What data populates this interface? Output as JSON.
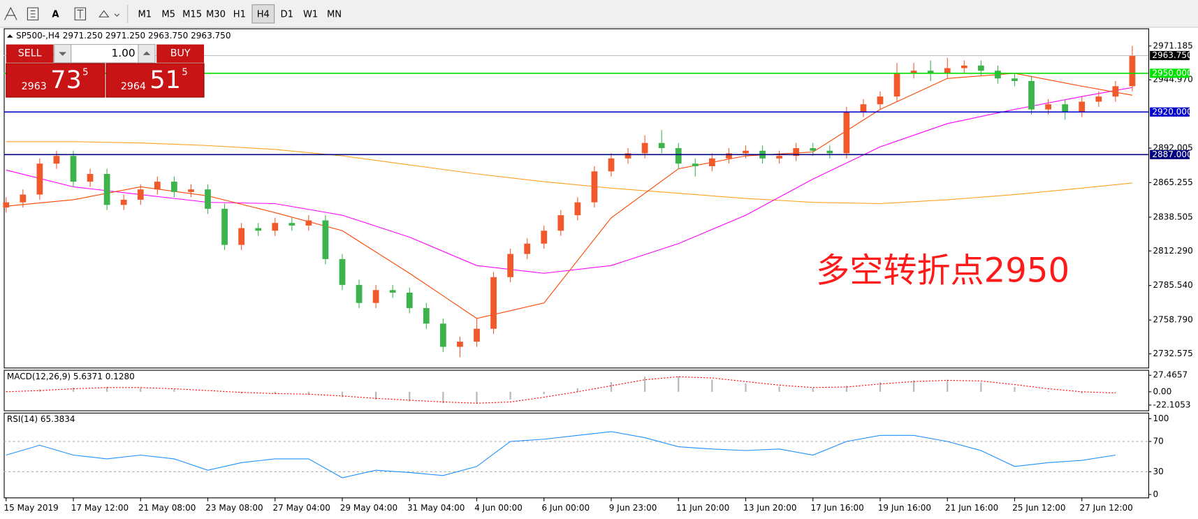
{
  "toolbar": {
    "timeframes": [
      "M1",
      "M5",
      "M15",
      "M30",
      "H1",
      "H4",
      "D1",
      "W1",
      "MN"
    ],
    "active": "H4"
  },
  "trade_panel": {
    "sell": "SELL",
    "lots": "1.00",
    "buy": "BUY",
    "bid": {
      "big": "2963",
      "mid": "73",
      "small": "5"
    },
    "ask": {
      "big": "2964",
      "mid": "51",
      "small": "5"
    }
  },
  "chart_data": [
    {
      "type": "candlestick",
      "title": "SP500-,H4",
      "ohlc_header": "2971.250 2971.250 2963.750 2963.750",
      "categories": [
        "15 May 2019",
        null,
        null,
        null,
        "17 May 12:00",
        null,
        null,
        null,
        "21 May 08:00",
        null,
        null,
        null,
        "23 May 08:00",
        null,
        null,
        null,
        "27 May 04:00",
        null,
        null,
        null,
        "29 May 04:00",
        null,
        null,
        null,
        "31 May 04:00",
        null,
        null,
        null,
        "4 Jun 00:00",
        null,
        null,
        null,
        "6 Jun 00:00",
        null,
        null,
        null,
        "9 Jun 23:00",
        null,
        null,
        null,
        "11 Jun 20:00",
        null,
        null,
        null,
        "13 Jun 20:00",
        null,
        null,
        null,
        "17 Jun 16:00",
        null,
        null,
        null,
        "19 Jun 16:00",
        null,
        null,
        null,
        "21 Jun 16:00",
        null,
        null,
        null,
        "25 Jun 12:00",
        null,
        null,
        null,
        "27 Jun 12:00",
        null,
        null,
        null
      ],
      "open": [
        2846,
        2850,
        2856,
        2880,
        2886,
        2866,
        2872,
        2848,
        2852,
        2860,
        2866,
        2858,
        2860,
        2845,
        2817,
        2830,
        2828,
        2834,
        2832,
        2836,
        2806,
        2786,
        2772,
        2782,
        2780,
        2768,
        2756,
        2738,
        2742,
        2752,
        2792,
        2810,
        2818,
        2828,
        2840,
        2850,
        2874,
        2884,
        2888,
        2896,
        2892,
        2880,
        2878,
        2884,
        2888,
        2890,
        2884,
        2886,
        2892,
        2890,
        2888,
        2920,
        2926,
        2932,
        2950,
        2952,
        2950,
        2954,
        2956,
        2952,
        2946,
        2944,
        2922,
        2926,
        2920,
        2928,
        2932,
        2940
      ],
      "high": [
        2854,
        2860,
        2884,
        2890,
        2890,
        2876,
        2876,
        2856,
        2864,
        2870,
        2870,
        2864,
        2864,
        2849,
        2834,
        2834,
        2838,
        2838,
        2840,
        2840,
        2810,
        2790,
        2786,
        2786,
        2784,
        2772,
        2760,
        2746,
        2760,
        2796,
        2814,
        2822,
        2832,
        2844,
        2854,
        2878,
        2888,
        2892,
        2902,
        2906,
        2896,
        2884,
        2888,
        2892,
        2894,
        2894,
        2890,
        2896,
        2896,
        2894,
        2924,
        2930,
        2936,
        2958,
        2958,
        2960,
        2962,
        2960,
        2960,
        2956,
        2950,
        2948,
        2930,
        2930,
        2932,
        2936,
        2944,
        2971.25
      ],
      "low": [
        2842,
        2846,
        2852,
        2876,
        2862,
        2862,
        2844,
        2844,
        2848,
        2856,
        2854,
        2854,
        2841,
        2813,
        2813,
        2824,
        2824,
        2828,
        2828,
        2802,
        2782,
        2768,
        2768,
        2776,
        2764,
        2752,
        2734,
        2730,
        2738,
        2748,
        2788,
        2806,
        2814,
        2824,
        2836,
        2846,
        2870,
        2880,
        2884,
        2888,
        2876,
        2870,
        2874,
        2880,
        2884,
        2880,
        2880,
        2882,
        2886,
        2884,
        2884,
        2916,
        2922,
        2928,
        2946,
        2944,
        2946,
        2950,
        2948,
        2942,
        2940,
        2918,
        2918,
        2914,
        2916,
        2924,
        2928,
        2936
      ],
      "close": [
        2850,
        2856,
        2880,
        2886,
        2866,
        2872,
        2848,
        2852,
        2860,
        2866,
        2858,
        2860,
        2845,
        2817,
        2830,
        2828,
        2834,
        2832,
        2836,
        2806,
        2786,
        2772,
        2782,
        2780,
        2768,
        2756,
        2738,
        2742,
        2752,
        2792,
        2810,
        2818,
        2828,
        2840,
        2850,
        2874,
        2884,
        2888,
        2896,
        2892,
        2880,
        2878,
        2884,
        2888,
        2890,
        2884,
        2886,
        2892,
        2890,
        2888,
        2920,
        2926,
        2932,
        2950,
        2952,
        2950,
        2954,
        2956,
        2952,
        2946,
        2944,
        2922,
        2926,
        2920,
        2928,
        2932,
        2940,
        2963.75
      ],
      "up_color": "#f1592a",
      "down_color": "#3cb44b",
      "series": [
        {
          "color": "#ffa020",
          "x": [
            0,
            4,
            8,
            12,
            16,
            20,
            24,
            28,
            32,
            36,
            40,
            44,
            48,
            52,
            56,
            60,
            64,
            67
          ],
          "values": [
            2897,
            2897,
            2896,
            2894,
            2891,
            2886,
            2879,
            2872,
            2866,
            2861,
            2857,
            2853,
            2850,
            2849,
            2852,
            2856,
            2861,
            2865
          ]
        },
        {
          "color": "#ff00ff",
          "x": [
            0,
            4,
            8,
            12,
            16,
            20,
            24,
            28,
            32,
            36,
            40,
            44,
            48,
            52,
            56,
            60,
            64,
            67
          ],
          "values": [
            2875,
            2862,
            2856,
            2850,
            2849,
            2840,
            2823,
            2801,
            2795,
            2801,
            2818,
            2840,
            2868,
            2893,
            2911,
            2922,
            2932,
            2939
          ]
        },
        {
          "color": "#ff4500",
          "x": [
            0,
            4,
            8,
            12,
            16,
            20,
            24,
            28,
            32,
            36,
            40,
            44,
            48,
            52,
            56,
            60,
            64,
            67
          ],
          "values": [
            2847,
            2852,
            2862,
            2855,
            2842,
            2828,
            2795,
            2760,
            2772,
            2838,
            2876,
            2886,
            2889,
            2922,
            2946,
            2950,
            2940,
            2933
          ]
        }
      ],
      "levels": [
        {
          "value": 2950,
          "label": "2950.000",
          "color": "#00e000"
        },
        {
          "value": 2920,
          "label": "2920.000",
          "color": "#0000cc"
        },
        {
          "value": 2887,
          "label": "2887.000",
          "color": "#000080"
        }
      ],
      "current_price": {
        "value": 2963.75,
        "label": "2963.750"
      },
      "ylim": [
        2721.9,
        2984.8
      ],
      "yticks": [
        2971.185,
        {
          "value": 2944.97,
          "label": "2944.970"
        },
        2892.005,
        2865.255,
        2838.505,
        {
          "value": 2812.29,
          "label": "2812.290"
        },
        {
          "value": 2785.54,
          "label": "2785.540"
        },
        {
          "value": 2758.79,
          "label": "2758.790"
        },
        2732.575
      ],
      "annotation": "多空转折点2950",
      "annotation_color": "#ff1a1a"
    },
    {
      "type": "macd",
      "title": "MACD(12,26,9) 5.6371 0.1280",
      "x": [
        0,
        2,
        4,
        6,
        8,
        10,
        12,
        14,
        16,
        18,
        20,
        22,
        24,
        26,
        28,
        30,
        32,
        34,
        36,
        38,
        40,
        42,
        44,
        46,
        48,
        50,
        52,
        54,
        56,
        58,
        60,
        62,
        64,
        66
      ],
      "histogram": [
        1,
        4,
        7,
        8,
        6,
        4,
        0,
        -3,
        -4,
        -5,
        -9,
        -13,
        -16,
        -19,
        -20,
        -13,
        -4,
        6,
        16,
        25,
        26,
        20,
        14,
        9,
        6,
        10,
        16,
        19,
        20,
        16,
        8,
        1,
        -3,
        -1
      ],
      "signal": [
        0,
        2,
        5,
        7,
        7,
        5,
        2,
        -1,
        -3,
        -4,
        -7,
        -11,
        -14,
        -17,
        -19,
        -17,
        -9,
        0,
        10,
        20,
        25,
        23,
        17,
        11,
        7,
        8,
        13,
        17,
        19,
        18,
        12,
        5,
        0,
        -2
      ],
      "histogram_color": "#b8b8b8",
      "signal_color": "#ff0000",
      "ylim": [
        -31,
        36.4
      ],
      "yticks": [
        27.4657,
        {
          "value": 0,
          "label": "0.00"
        },
        -22.1053
      ]
    },
    {
      "type": "line",
      "title": "RSI(14) 65.3834",
      "x": [
        0,
        2,
        4,
        6,
        8,
        10,
        12,
        14,
        16,
        18,
        20,
        22,
        24,
        26,
        28,
        30,
        32,
        34,
        36,
        38,
        40,
        42,
        44,
        46,
        48,
        50,
        52,
        54,
        56,
        58,
        60,
        62,
        64,
        66
      ],
      "values": [
        52,
        65,
        52,
        47,
        52,
        47,
        32,
        42,
        47,
        47,
        22,
        32,
        29,
        25,
        37,
        70,
        73,
        78,
        83,
        75,
        63,
        60,
        58,
        60,
        52,
        70,
        78,
        78,
        70,
        58,
        37,
        42,
        45,
        52
      ],
      "color": "#1e90ff",
      "levels": [
        70,
        30
      ],
      "ylim": [
        -4,
        108
      ],
      "yticks": [
        100,
        70,
        30,
        0
      ]
    }
  ]
}
